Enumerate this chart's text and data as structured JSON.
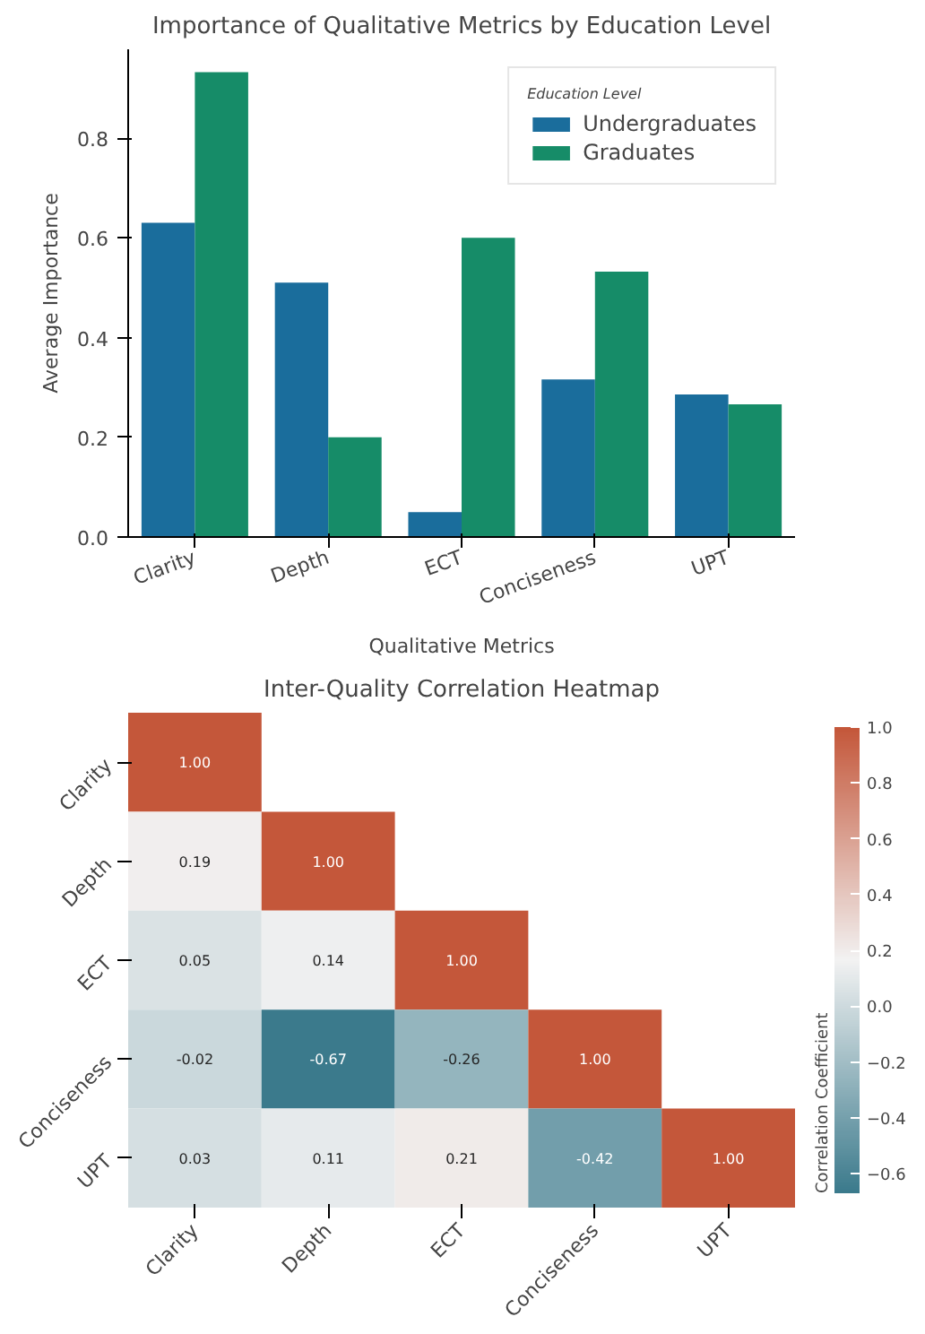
{
  "chart_data": [
    {
      "type": "bar",
      "title": "Importance of Qualitative Metrics by Education Level",
      "xlabel": "Qualitative Metrics",
      "ylabel": "Average Importance",
      "legend_title": "Education Level",
      "legend": "top right",
      "grid": false,
      "categories": [
        "Clarity",
        "Depth",
        "ECT",
        "Conciseness",
        "UPT"
      ],
      "series": [
        {
          "name": "Undergraduates",
          "color": "#1a6d9c",
          "values": [
            0.63,
            0.51,
            0.05,
            0.316,
            0.286
          ]
        },
        {
          "name": "Graduates",
          "color": "#168c68",
          "values": [
            0.932,
            0.2,
            0.6,
            0.532,
            0.266
          ]
        }
      ],
      "ylim": [
        0,
        0.978
      ],
      "yticks": [
        {
          "value": 0,
          "label": "0.0"
        },
        0.2,
        0.4,
        0.6,
        0.8
      ]
    },
    {
      "type": "heatmap",
      "title": "Inter-Quality Correlation Heatmap",
      "clabel": "Correlation Coefficient",
      "categories": [
        "Clarity",
        "Depth",
        "ECT",
        "Conciseness",
        "UPT"
      ],
      "y_categories": [
        "Clarity",
        "Depth",
        "ECT",
        "Conciseness",
        "UPT"
      ],
      "cells": [
        [
          1.0,
          null,
          null,
          null,
          null
        ],
        [
          0.19,
          1.0,
          null,
          null,
          null
        ],
        [
          0.05,
          0.14,
          1.0,
          null,
          null
        ],
        [
          -0.02,
          -0.67,
          -0.26,
          1.0,
          null
        ],
        [
          0.03,
          0.11,
          0.21,
          -0.42,
          1.0
        ]
      ],
      "cell_labels": [
        [
          "1.00",
          null,
          null,
          null,
          null
        ],
        [
          "0.19",
          "1.00",
          null,
          null,
          null
        ],
        [
          "0.05",
          "0.14",
          "1.00",
          null,
          null
        ],
        [
          "-0.02",
          "-0.67",
          "-0.26",
          "1.00",
          null
        ],
        [
          "0.03",
          "0.11",
          "0.21",
          "-0.42",
          "1.00"
        ]
      ],
      "clim": [
        -0.67,
        1.0
      ],
      "cticks": [
        {
          "value": -0.6,
          "label": "−0.6"
        },
        {
          "value": -0.4,
          "label": "−0.4"
        },
        {
          "value": -0.2,
          "label": "−0.2"
        },
        {
          "value": 0,
          "label": "0.0"
        },
        {
          "value": 0.2,
          "label": "0.2"
        },
        {
          "value": 0.4,
          "label": "0.4"
        },
        {
          "value": 0.6,
          "label": "0.6"
        },
        {
          "value": 0.8,
          "label": "0.8"
        },
        {
          "value": 1.0,
          "label": "1.0"
        }
      ]
    }
  ]
}
